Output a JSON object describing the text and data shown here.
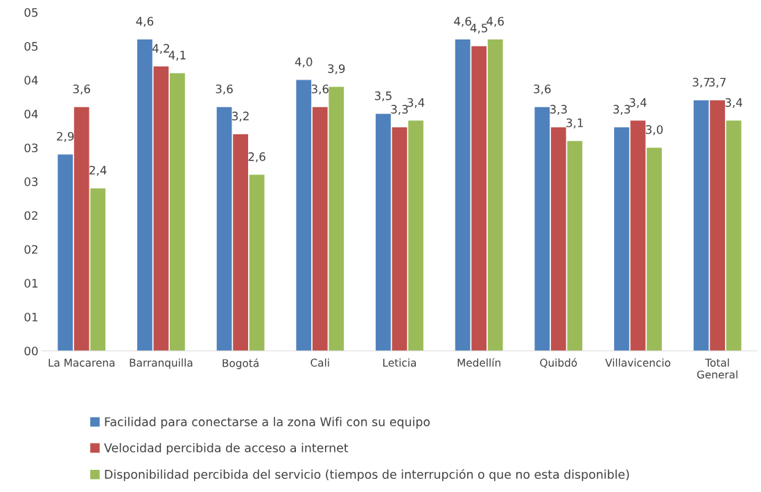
{
  "chart_data": {
    "type": "bar",
    "categories": [
      "La Macarena",
      "Barranquilla",
      "Bogotá",
      "Cali",
      "Leticia",
      "Medellín",
      "Quibdó",
      "Villavicencio",
      "Total\nGeneral"
    ],
    "series": [
      {
        "name": "Facilidad para conectarse a la zona Wifi con su equipo",
        "color": "#4f81bd",
        "values": [
          2.9,
          4.6,
          3.6,
          4.0,
          3.5,
          4.6,
          3.6,
          3.3,
          3.7
        ],
        "value_labels": [
          "2,9",
          "4,6",
          "3,6",
          "4,0",
          "3,5",
          "4,6",
          "3,6",
          "3,3",
          "3,7"
        ]
      },
      {
        "name": "Velocidad percibida de acceso a internet",
        "color": "#c0504d",
        "values": [
          3.6,
          4.2,
          3.2,
          3.6,
          3.3,
          4.5,
          3.3,
          3.4,
          3.7
        ],
        "value_labels": [
          "3,6",
          "4,2",
          "3,2",
          "3,6",
          "3,3",
          "4,5",
          "3,3",
          "3,4",
          "3,7"
        ]
      },
      {
        "name": "Disponibilidad percibida del servicio (tiempos de interrupción o que no esta disponible)",
        "color": "#9bbb59",
        "values": [
          2.4,
          4.1,
          2.6,
          3.9,
          3.4,
          4.6,
          3.1,
          3.0,
          3.4
        ],
        "value_labels": [
          "2,4",
          "4,1",
          "2,6",
          "3,9",
          "3,4",
          "4,6",
          "3,1",
          "3,0",
          "3,4"
        ]
      }
    ],
    "ylim": [
      0,
      5
    ],
    "yticks": [
      {
        "value": 0,
        "label": "00"
      },
      {
        "value": 0.5,
        "label": "01"
      },
      {
        "value": 1,
        "label": "01"
      },
      {
        "value": 1.5,
        "label": "02"
      },
      {
        "value": 2,
        "label": "02"
      },
      {
        "value": 2.5,
        "label": "03"
      },
      {
        "value": 3,
        "label": "03"
      },
      {
        "value": 3.5,
        "label": "04"
      },
      {
        "value": 4,
        "label": "04"
      },
      {
        "value": 4.5,
        "label": "05"
      },
      {
        "value": 5,
        "label": "05"
      }
    ],
    "grid": false,
    "legend": "bottom"
  }
}
